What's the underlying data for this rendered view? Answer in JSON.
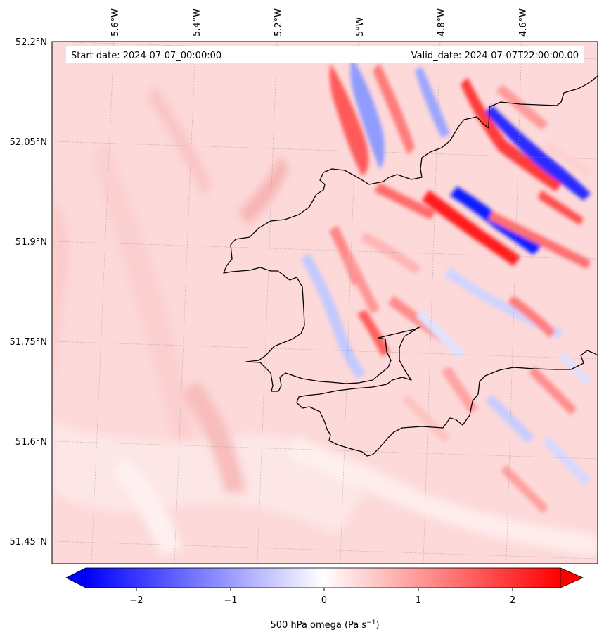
{
  "header": {
    "start_label": "Start date: 2024-07-07_00:00:00",
    "valid_label": "Valid_date: 2024-07-07T22:00:00.00"
  },
  "axes": {
    "lat_labels": [
      "52.2°N",
      "52.05°N",
      "51.9°N",
      "51.75°N",
      "51.6°N",
      "51.45°N"
    ],
    "lon_labels": [
      "5.6°W",
      "5.4°W",
      "5.2°W",
      "5°W",
      "4.8°W",
      "4.6°W"
    ]
  },
  "colorbar": {
    "tick_labels": [
      "−2",
      "−1",
      "0",
      "1",
      "2"
    ],
    "label_main": "500 hPa omega (Pa s",
    "label_exp": "−1",
    "label_end": ")",
    "min": -2.6,
    "max": 2.6,
    "neg_color": "#0000ff",
    "zero_color": "#ffffff",
    "pos_color": "#ff0000"
  },
  "map": {
    "background_color": "#fdd9d9",
    "coastline_color": "#000000",
    "field_variable": "500 hPa omega",
    "field_units": "Pa s-1",
    "field_pattern": "south-west/east oriented alternating positive and negative bands over the north-east (sea) part of the domain; weak positive values over the west and south"
  }
}
